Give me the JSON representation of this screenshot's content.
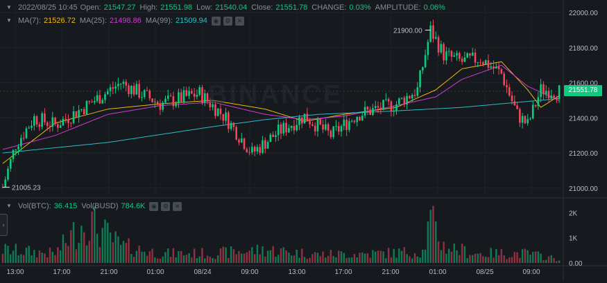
{
  "legend_top": {
    "datetime": "2022/08/25 10:45",
    "open_label": "Open:",
    "open": "21547.27",
    "high_label": "High:",
    "high": "21551.98",
    "low_label": "Low:",
    "low": "21540.04",
    "close_label": "Close:",
    "close": "21551.78",
    "change_label": "CHANGE:",
    "change": "0.03%",
    "amplitude_label": "AMPLITUDE:",
    "amplitude": "0.06%"
  },
  "legend_ma": {
    "ma7_label": "MA(7):",
    "ma7": "21526.72",
    "ma25_label": "MA(25):",
    "ma25": "21498.86",
    "ma99_label": "MA(99):",
    "ma99": "21509.94"
  },
  "legend_vol": {
    "vol_btc_label": "Vol(BTC):",
    "vol_btc": "36.415",
    "vol_busd_label": "Vol(BUSD)",
    "vol_busd": "784.6K"
  },
  "watermark": "BINANCE",
  "current_price": "21551.78",
  "high_marker": "21900.00",
  "low_marker": "21005.23",
  "colors": {
    "up": "#0ecb81",
    "down": "#f6465d",
    "ma7": "#f0b90b",
    "ma25": "#d13ad1",
    "ma99": "#2dbdc7",
    "background": "#161a1e"
  },
  "chart_data": {
    "type": "candlestick",
    "price_axis": {
      "ticks": [
        "22000.00",
        "21800.00",
        "21600.00",
        "21400.00",
        "21200.00",
        "21000.00"
      ],
      "range": [
        20960,
        22040
      ]
    },
    "volume_axis": {
      "ticks": [
        "2K",
        "1K",
        "0.00"
      ],
      "range": [
        0,
        2200
      ]
    },
    "x_ticks": [
      "13:00",
      "17:00",
      "21:00",
      "01:00",
      "08/24",
      "09:00",
      "13:00",
      "17:00",
      "21:00",
      "01:00",
      "08/25",
      "09:00"
    ],
    "candles_shown": 213,
    "series": [
      {
        "name": "MA(7)",
        "anchors": [
          [
            0,
            21140
          ],
          [
            20,
            21370
          ],
          [
            40,
            21450
          ],
          [
            60,
            21480
          ],
          [
            80,
            21500
          ],
          [
            100,
            21450
          ],
          [
            115,
            21380
          ],
          [
            130,
            21420
          ],
          [
            150,
            21460
          ],
          [
            165,
            21560
          ],
          [
            175,
            21680
          ],
          [
            190,
            21720
          ],
          [
            200,
            21560
          ],
          [
            205,
            21460
          ],
          [
            212,
            21526
          ]
        ]
      },
      {
        "name": "MA(25)",
        "anchors": [
          [
            0,
            21220
          ],
          [
            20,
            21300
          ],
          [
            40,
            21420
          ],
          [
            60,
            21470
          ],
          [
            80,
            21490
          ],
          [
            100,
            21420
          ],
          [
            115,
            21390
          ],
          [
            130,
            21410
          ],
          [
            150,
            21470
          ],
          [
            165,
            21520
          ],
          [
            175,
            21620
          ],
          [
            190,
            21700
          ],
          [
            200,
            21580
          ],
          [
            212,
            21499
          ]
        ]
      },
      {
        "name": "MA(99)",
        "anchors": [
          [
            0,
            21200
          ],
          [
            40,
            21260
          ],
          [
            80,
            21350
          ],
          [
            100,
            21390
          ],
          [
            120,
            21420
          ],
          [
            150,
            21440
          ],
          [
            175,
            21460
          ],
          [
            212,
            21510
          ]
        ]
      }
    ],
    "price_path": [
      [
        0,
        21005
      ],
      [
        5,
        21250
      ],
      [
        12,
        21400
      ],
      [
        20,
        21360
      ],
      [
        30,
        21450
      ],
      [
        45,
        21600
      ],
      [
        60,
        21480
      ],
      [
        75,
        21540
      ],
      [
        85,
        21400
      ],
      [
        95,
        21200
      ],
      [
        105,
        21320
      ],
      [
        115,
        21410
      ],
      [
        125,
        21300
      ],
      [
        135,
        21420
      ],
      [
        150,
        21480
      ],
      [
        158,
        21560
      ],
      [
        163,
        21900
      ],
      [
        168,
        21760
      ],
      [
        175,
        21720
      ],
      [
        182,
        21740
      ],
      [
        190,
        21650
      ],
      [
        196,
        21420
      ],
      [
        200,
        21360
      ],
      [
        205,
        21560
      ],
      [
        212,
        21551
      ]
    ],
    "volume_profile": [
      [
        0,
        700
      ],
      [
        20,
        500
      ],
      [
        32,
        2300
      ],
      [
        45,
        900
      ],
      [
        60,
        500
      ],
      [
        80,
        500
      ],
      [
        100,
        700
      ],
      [
        120,
        450
      ],
      [
        140,
        500
      ],
      [
        160,
        600
      ],
      [
        163,
        2200
      ],
      [
        168,
        900
      ],
      [
        180,
        500
      ],
      [
        200,
        500
      ],
      [
        212,
        200
      ]
    ]
  }
}
